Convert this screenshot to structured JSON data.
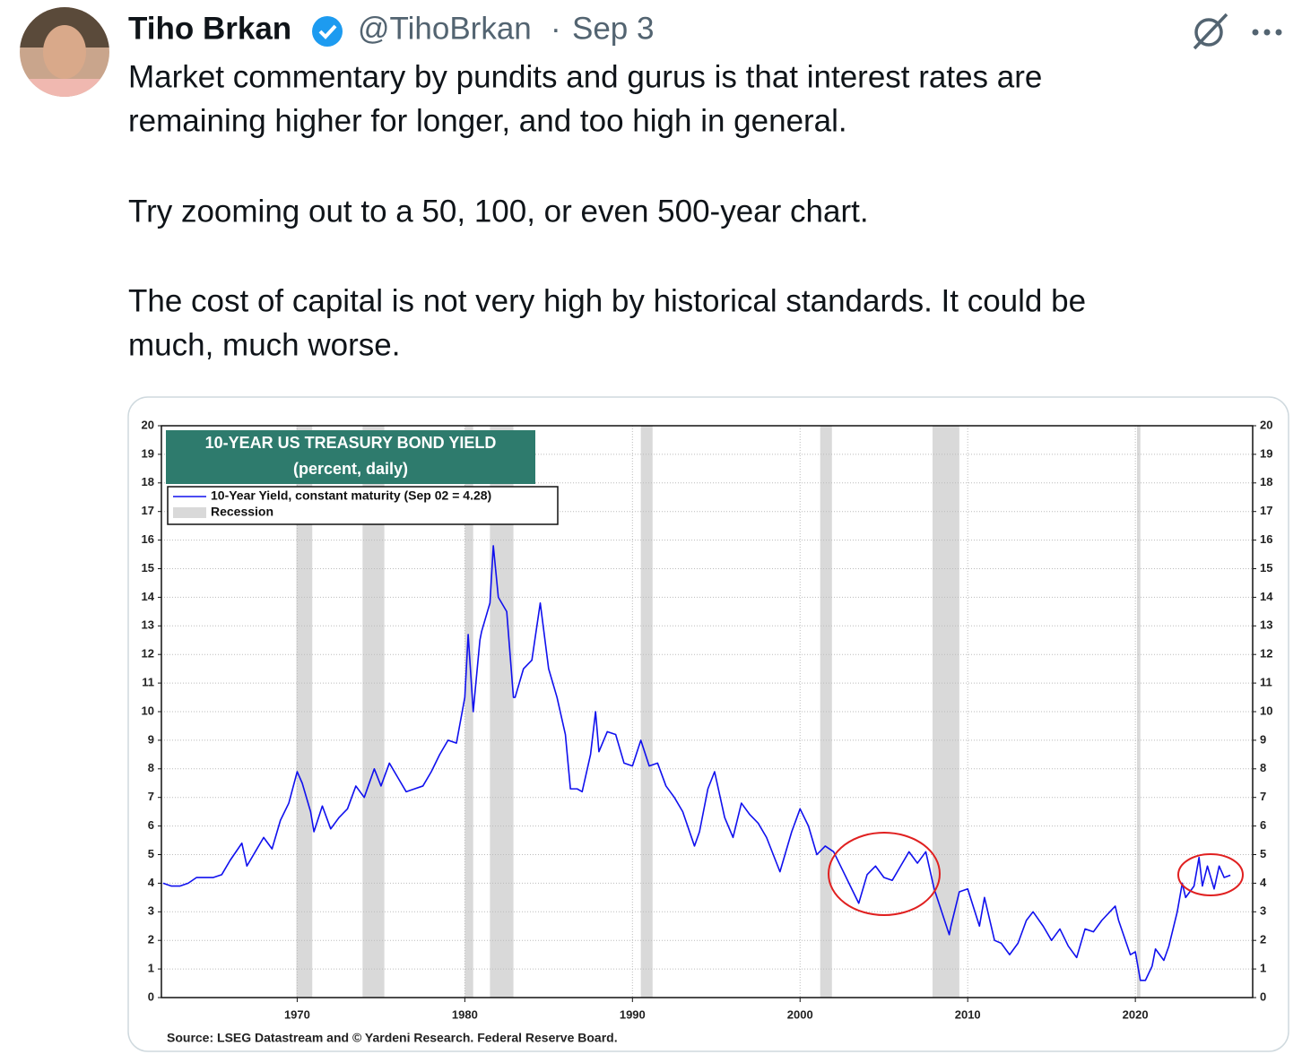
{
  "tweet": {
    "author": {
      "name": "Tiho Brkan",
      "handle": "@TihoBrkan",
      "separator": "·",
      "date": "Sep 3"
    },
    "paragraphs": [
      [
        "Market commentary by pundits and gurus is that interest rates are",
        "remaining higher for longer, and too high in general."
      ],
      [
        "Try zooming out to a 50, 100, or even 500-year chart."
      ],
      [
        "The cost of capital is not very high by historical standards. It could be",
        "much, much worse."
      ]
    ]
  },
  "chart_data": {
    "type": "line",
    "title": "10-YEAR US TREASURY BOND YIELD",
    "subtitle": "(percent, daily)",
    "source": "Source: LSEG Datastream and © Yardeni Research. Federal Reserve Board.",
    "recession_name": "Recession",
    "recessions": [
      [
        1969.95,
        1970.9
      ],
      [
        1973.9,
        1975.2
      ],
      [
        1980.0,
        1980.5
      ],
      [
        1981.5,
        1982.9
      ],
      [
        1990.5,
        1991.2
      ],
      [
        2001.2,
        2001.9
      ],
      [
        2007.9,
        2009.5
      ],
      [
        2020.1,
        2020.3
      ]
    ],
    "x": [
      1962,
      1962.5,
      1963,
      1963.5,
      1964,
      1965,
      1965.5,
      1966,
      1966.7,
      1967,
      1967.5,
      1968,
      1968.5,
      1969,
      1969.5,
      1970,
      1970.3,
      1970.8,
      1971,
      1971.5,
      1972,
      1972.5,
      1973,
      1973.5,
      1974,
      1974.6,
      1975,
      1975.5,
      1976,
      1976.5,
      1977,
      1977.5,
      1978,
      1978.5,
      1979,
      1979.5,
      1980,
      1980.2,
      1980.5,
      1980.9,
      1981,
      1981.5,
      1981.7,
      1982,
      1982.5,
      1982.9,
      1983,
      1983.5,
      1984,
      1984.5,
      1985,
      1985.5,
      1986,
      1986.3,
      1986.7,
      1987,
      1987.5,
      1987.8,
      1988,
      1988.5,
      1989,
      1989.5,
      1990,
      1990.5,
      1991,
      1991.5,
      1992,
      1992.5,
      1993,
      1993.7,
      1994,
      1994.5,
      1994.9,
      1995.5,
      1996,
      1996.5,
      1997,
      1997.5,
      1998,
      1998.8,
      1999,
      1999.5,
      2000,
      2000.5,
      2001,
      2001.5,
      2002,
      2002.5,
      2003,
      2003.5,
      2004,
      2004.5,
      2005,
      2005.5,
      2006,
      2006.5,
      2007,
      2007.5,
      2008,
      2008.9,
      2009,
      2009.5,
      2010,
      2010.7,
      2011,
      2011.6,
      2012,
      2012.5,
      2013,
      2013.5,
      2013.9,
      2014.5,
      2015,
      2015.5,
      2016,
      2016.5,
      2017,
      2017.5,
      2018,
      2018.8,
      2019,
      2019.7,
      2020,
      2020.3,
      2020.6,
      2021,
      2021.2,
      2021.7,
      2022,
      2022.5,
      2022.8,
      2023,
      2023.5,
      2023.8,
      2024,
      2024.3,
      2024.7,
      2025,
      2025.3,
      2025.67
    ],
    "series": [
      {
        "name": "10-Year Yield, constant maturity (Sep 02 = 4.28)",
        "color": "#1010ee",
        "values": [
          4.0,
          3.9,
          3.9,
          4.0,
          4.2,
          4.2,
          4.3,
          4.8,
          5.4,
          4.6,
          5.1,
          5.6,
          5.2,
          6.2,
          6.8,
          7.9,
          7.5,
          6.5,
          5.8,
          6.7,
          5.9,
          6.3,
          6.6,
          7.4,
          7.0,
          8.0,
          7.4,
          8.2,
          7.7,
          7.2,
          7.3,
          7.4,
          7.9,
          8.5,
          9.0,
          8.9,
          10.5,
          12.7,
          10.0,
          12.5,
          12.8,
          13.8,
          15.8,
          14.0,
          13.5,
          10.5,
          10.5,
          11.5,
          11.8,
          13.8,
          11.5,
          10.5,
          9.2,
          7.3,
          7.3,
          7.2,
          8.5,
          10.0,
          8.6,
          9.3,
          9.2,
          8.2,
          8.1,
          9.0,
          8.1,
          8.2,
          7.4,
          7.0,
          6.5,
          5.3,
          5.8,
          7.3,
          7.9,
          6.3,
          5.6,
          6.8,
          6.4,
          6.1,
          5.6,
          4.4,
          4.8,
          5.8,
          6.6,
          6.0,
          5.0,
          5.3,
          5.1,
          4.5,
          3.9,
          3.3,
          4.3,
          4.6,
          4.2,
          4.1,
          4.6,
          5.1,
          4.7,
          5.1,
          3.8,
          2.2,
          2.5,
          3.7,
          3.8,
          2.5,
          3.5,
          2.0,
          1.9,
          1.5,
          1.9,
          2.7,
          3.0,
          2.5,
          2.0,
          2.4,
          1.8,
          1.4,
          2.4,
          2.3,
          2.7,
          3.2,
          2.7,
          1.5,
          1.6,
          0.6,
          0.6,
          1.1,
          1.7,
          1.3,
          1.8,
          3.0,
          4.0,
          3.5,
          3.9,
          4.9,
          3.9,
          4.6,
          3.8,
          4.6,
          4.2,
          4.28
        ]
      }
    ],
    "xlim": [
      1961.9,
      2027.0
    ],
    "ylim": [
      0,
      20
    ],
    "xticks": [
      1970,
      1980,
      1990,
      2000,
      2010,
      2020
    ],
    "yticks": [
      0,
      1,
      2,
      3,
      4,
      5,
      6,
      7,
      8,
      9,
      10,
      11,
      12,
      13,
      14,
      15,
      16,
      17,
      18,
      19,
      20
    ],
    "grid": true
  }
}
